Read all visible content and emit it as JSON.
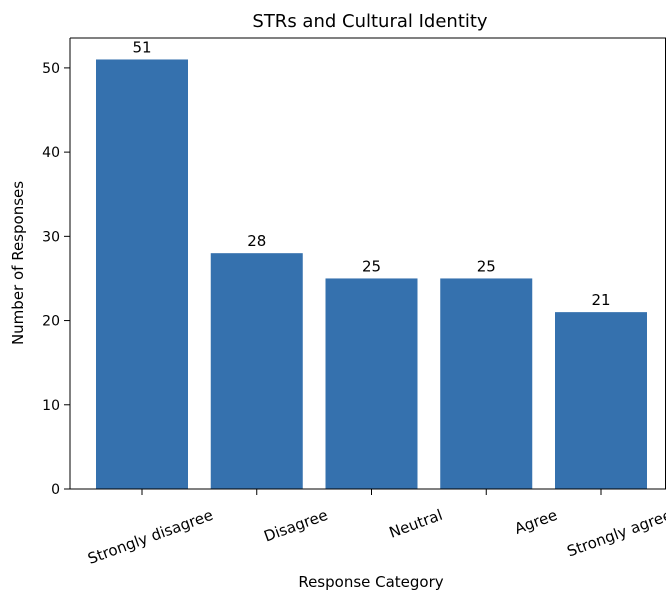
{
  "chart_data": {
    "type": "bar",
    "title": "STRs and Cultural Identity",
    "xlabel": "Response Category",
    "ylabel": "Number of Responses",
    "categories": [
      "Strongly disagree",
      "Disagree",
      "Neutral",
      "Agree",
      "Strongly agree"
    ],
    "values": [
      51,
      28,
      25,
      25,
      21
    ],
    "data_labels": [
      "51",
      "28",
      "25",
      "25",
      "21"
    ],
    "yticks": [
      0,
      10,
      20,
      30,
      40,
      50
    ],
    "ylim": [
      0,
      53.55
    ],
    "grid": false,
    "bar_color": "#3571ae",
    "x_tick_rotation_deg": 20
  }
}
